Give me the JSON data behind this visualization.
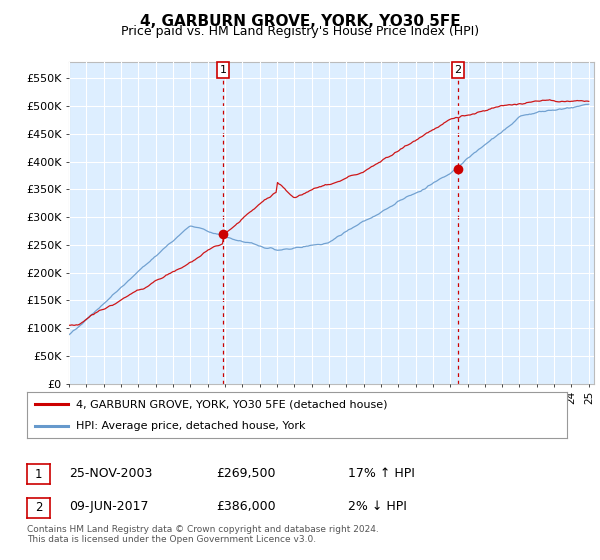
{
  "title": "4, GARBURN GROVE, YORK, YO30 5FE",
  "subtitle": "Price paid vs. HM Land Registry's House Price Index (HPI)",
  "background_color": "#ffffff",
  "plot_bg_color": "#ddeeff",
  "grid_color": "#ffffff",
  "ylim": [
    0,
    580000
  ],
  "yticks": [
    0,
    50000,
    100000,
    150000,
    200000,
    250000,
    300000,
    350000,
    400000,
    450000,
    500000,
    550000
  ],
  "ytick_labels": [
    "£0",
    "£50K",
    "£100K",
    "£150K",
    "£200K",
    "£250K",
    "£300K",
    "£350K",
    "£400K",
    "£450K",
    "£500K",
    "£550K"
  ],
  "red_line_color": "#cc0000",
  "blue_line_color": "#6699cc",
  "sale_marker_color": "#cc0000",
  "sale1_x": 2003.9,
  "sale1_price": 269500,
  "sale2_x": 2017.45,
  "sale2_price": 386000,
  "legend_red_label": "4, GARBURN GROVE, YORK, YO30 5FE (detached house)",
  "legend_blue_label": "HPI: Average price, detached house, York",
  "annotation1_date": "25-NOV-2003",
  "annotation1_price": "£269,500",
  "annotation1_hpi": "17% ↑ HPI",
  "annotation2_date": "09-JUN-2017",
  "annotation2_price": "£386,000",
  "annotation2_hpi": "2% ↓ HPI",
  "footer": "Contains HM Land Registry data © Crown copyright and database right 2024.\nThis data is licensed under the Open Government Licence v3.0.",
  "vline_color": "#cc0000"
}
